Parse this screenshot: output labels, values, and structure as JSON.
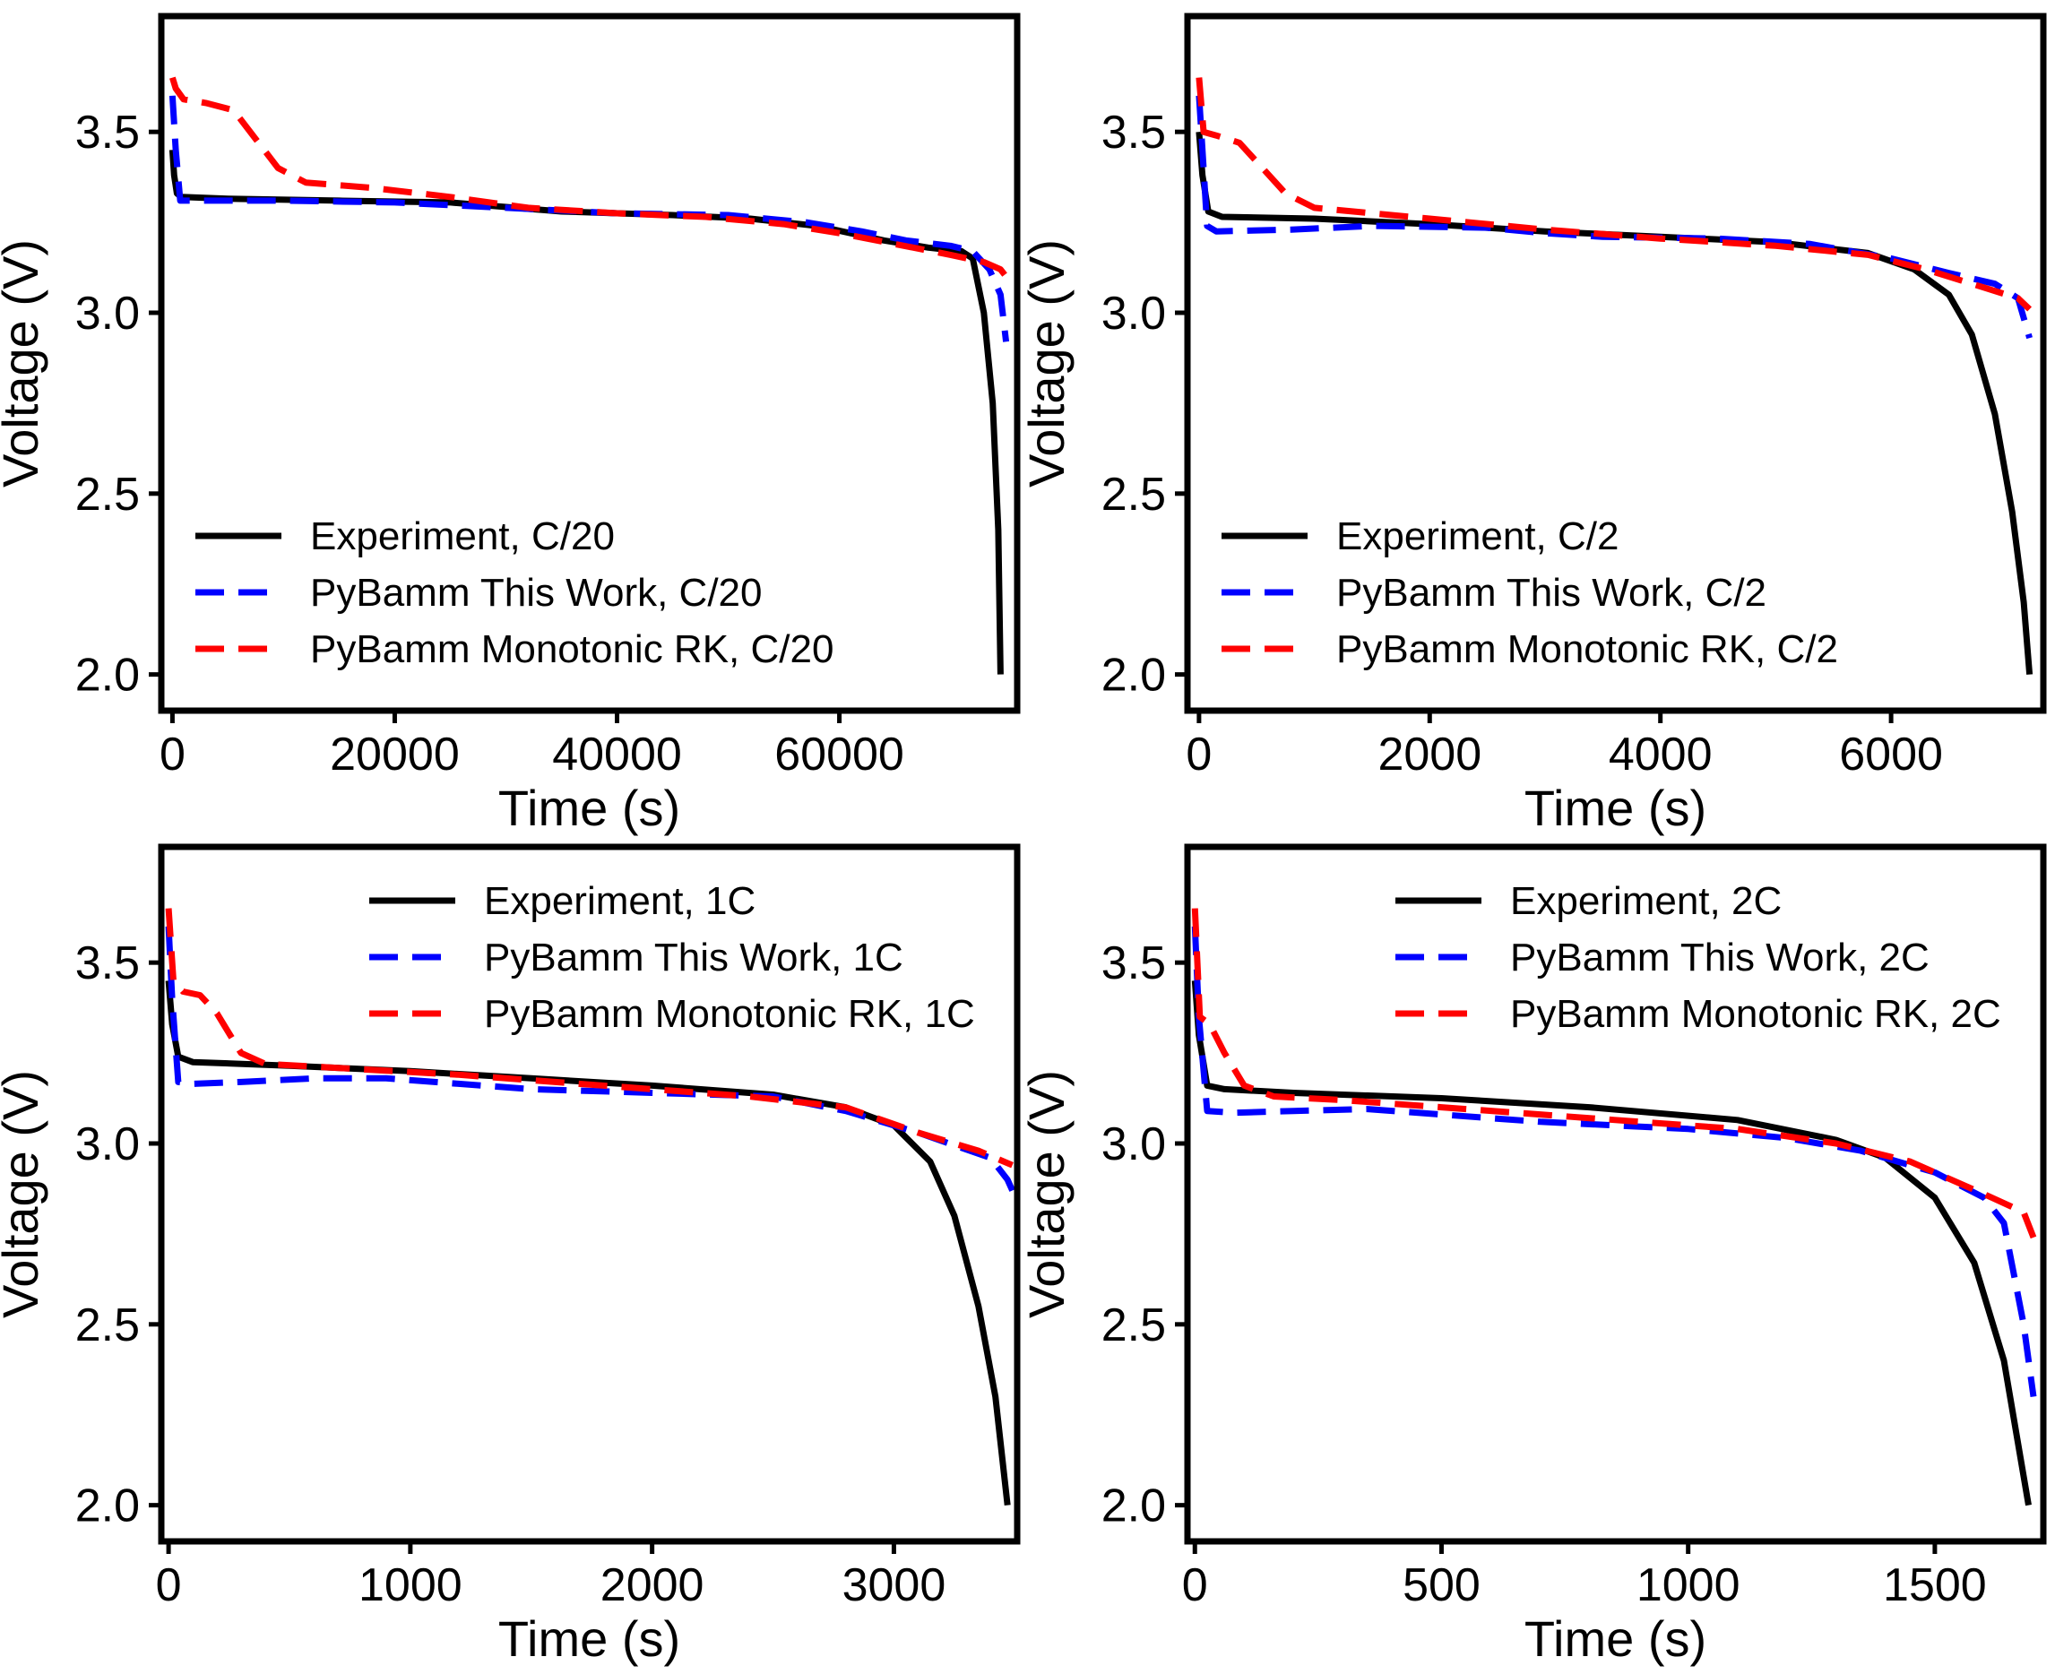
{
  "colors": {
    "experiment": "#000000",
    "this_work": "#0000ff",
    "monotonic": "#ff0000",
    "frame": "#000000"
  },
  "chart_data": [
    {
      "type": "line",
      "xlabel": "Time (s)",
      "ylabel": "Voltage (V)",
      "xlim": [
        -1000,
        76000
      ],
      "ylim": [
        1.9,
        3.82
      ],
      "xticks": [
        0,
        20000,
        40000,
        60000
      ],
      "yticks": [
        2.0,
        2.5,
        3.0,
        3.5
      ],
      "ytick_labels": [
        "2.0",
        "2.5",
        "3.0",
        "3.5"
      ],
      "legend_position": "lower-left",
      "series": [
        {
          "name": "Experiment, C/20",
          "style": "solid",
          "color": "#000000",
          "points": [
            [
              0,
              3.45
            ],
            [
              150,
              3.38
            ],
            [
              400,
              3.33
            ],
            [
              800,
              3.32
            ],
            [
              5000,
              3.315
            ],
            [
              15000,
              3.31
            ],
            [
              25000,
              3.305
            ],
            [
              35000,
              3.28
            ],
            [
              45000,
              3.27
            ],
            [
              52000,
              3.26
            ],
            [
              58000,
              3.24
            ],
            [
              64000,
              3.2
            ],
            [
              68000,
              3.18
            ],
            [
              71000,
              3.17
            ],
            [
              72000,
              3.15
            ],
            [
              73000,
              3.0
            ],
            [
              73800,
              2.75
            ],
            [
              74300,
              2.4
            ],
            [
              74500,
              2.0
            ]
          ]
        },
        {
          "name": "PyBamm This Work, C/20",
          "style": "dashed",
          "color": "#0000ff",
          "points": [
            [
              0,
              3.6
            ],
            [
              300,
              3.45
            ],
            [
              700,
              3.31
            ],
            [
              1500,
              3.31
            ],
            [
              10000,
              3.31
            ],
            [
              20000,
              3.305
            ],
            [
              30000,
              3.29
            ],
            [
              40000,
              3.275
            ],
            [
              50000,
              3.27
            ],
            [
              57000,
              3.25
            ],
            [
              62000,
              3.225
            ],
            [
              66000,
              3.2
            ],
            [
              70000,
              3.185
            ],
            [
              72000,
              3.17
            ],
            [
              73500,
              3.12
            ],
            [
              74500,
              3.05
            ],
            [
              75000,
              2.92
            ]
          ]
        },
        {
          "name": "PyBamm Monotonic RK, C/20",
          "style": "dashed",
          "color": "#ff0000",
          "points": [
            [
              0,
              3.65
            ],
            [
              300,
              3.62
            ],
            [
              1000,
              3.59
            ],
            [
              3000,
              3.58
            ],
            [
              5500,
              3.56
            ],
            [
              7500,
              3.48
            ],
            [
              9500,
              3.4
            ],
            [
              12000,
              3.36
            ],
            [
              18000,
              3.345
            ],
            [
              25000,
              3.32
            ],
            [
              32000,
              3.29
            ],
            [
              40000,
              3.275
            ],
            [
              48000,
              3.265
            ],
            [
              55000,
              3.245
            ],
            [
              60000,
              3.22
            ],
            [
              65000,
              3.19
            ],
            [
              70000,
              3.16
            ],
            [
              73000,
              3.14
            ],
            [
              74500,
              3.12
            ],
            [
              75000,
              3.1
            ]
          ]
        }
      ]
    },
    {
      "type": "line",
      "xlabel": "Time (s)",
      "ylabel": "Voltage (V)",
      "xlim": [
        -100,
        7320
      ],
      "ylim": [
        1.9,
        3.82
      ],
      "xticks": [
        0,
        2000,
        4000,
        6000
      ],
      "yticks": [
        2.0,
        2.5,
        3.0,
        3.5
      ],
      "ytick_labels": [
        "2.0",
        "2.5",
        "3.0",
        "3.5"
      ],
      "legend_position": "lower-left",
      "series": [
        {
          "name": "Experiment, C/2",
          "style": "solid",
          "color": "#000000",
          "points": [
            [
              0,
              3.5
            ],
            [
              30,
              3.38
            ],
            [
              80,
              3.28
            ],
            [
              200,
              3.265
            ],
            [
              1000,
              3.26
            ],
            [
              2000,
              3.245
            ],
            [
              3000,
              3.225
            ],
            [
              4000,
              3.21
            ],
            [
              5000,
              3.195
            ],
            [
              5800,
              3.165
            ],
            [
              6200,
              3.12
            ],
            [
              6500,
              3.05
            ],
            [
              6700,
              2.94
            ],
            [
              6900,
              2.72
            ],
            [
              7050,
              2.45
            ],
            [
              7150,
              2.2
            ],
            [
              7200,
              2.0
            ]
          ]
        },
        {
          "name": "PyBamm This Work, C/2",
          "style": "dashed",
          "color": "#0000ff",
          "points": [
            [
              0,
              3.6
            ],
            [
              30,
              3.45
            ],
            [
              70,
              3.24
            ],
            [
              150,
              3.225
            ],
            [
              800,
              3.23
            ],
            [
              1500,
              3.24
            ],
            [
              2500,
              3.235
            ],
            [
              3000,
              3.22
            ],
            [
              3500,
              3.21
            ],
            [
              4500,
              3.205
            ],
            [
              5300,
              3.19
            ],
            [
              6000,
              3.15
            ],
            [
              6500,
              3.11
            ],
            [
              6900,
              3.08
            ],
            [
              7100,
              3.04
            ],
            [
              7200,
              2.93
            ]
          ]
        },
        {
          "name": "PyBamm Monotonic RK, C/2",
          "style": "dashed",
          "color": "#ff0000",
          "points": [
            [
              0,
              3.65
            ],
            [
              40,
              3.5
            ],
            [
              150,
              3.49
            ],
            [
              350,
              3.47
            ],
            [
              550,
              3.4
            ],
            [
              750,
              3.33
            ],
            [
              1000,
              3.29
            ],
            [
              1500,
              3.275
            ],
            [
              2000,
              3.26
            ],
            [
              3000,
              3.23
            ],
            [
              4000,
              3.205
            ],
            [
              5000,
              3.185
            ],
            [
              5800,
              3.16
            ],
            [
              6300,
              3.12
            ],
            [
              6800,
              3.07
            ],
            [
              7100,
              3.04
            ],
            [
              7200,
              3.01
            ]
          ]
        }
      ]
    },
    {
      "type": "line",
      "xlabel": "Time (s)",
      "ylabel": "Voltage (V)",
      "xlim": [
        -30,
        3510
      ],
      "ylim": [
        1.9,
        3.82
      ],
      "xticks": [
        0,
        1000,
        2000,
        3000
      ],
      "yticks": [
        2.0,
        2.5,
        3.0,
        3.5
      ],
      "ytick_labels": [
        "2.0",
        "2.5",
        "3.0",
        "3.5"
      ],
      "legend_position": "upper-center",
      "series": [
        {
          "name": "Experiment, 1C",
          "style": "solid",
          "color": "#000000",
          "points": [
            [
              0,
              3.45
            ],
            [
              15,
              3.33
            ],
            [
              40,
              3.24
            ],
            [
              100,
              3.225
            ],
            [
              500,
              3.215
            ],
            [
              1000,
              3.2
            ],
            [
              1500,
              3.18
            ],
            [
              2000,
              3.16
            ],
            [
              2500,
              3.135
            ],
            [
              2800,
              3.1
            ],
            [
              3000,
              3.05
            ],
            [
              3150,
              2.95
            ],
            [
              3250,
              2.8
            ],
            [
              3350,
              2.55
            ],
            [
              3420,
              2.3
            ],
            [
              3470,
              2.0
            ]
          ]
        },
        {
          "name": "PyBamm This Work, 1C",
          "style": "dashed",
          "color": "#0000ff",
          "points": [
            [
              0,
              3.6
            ],
            [
              15,
              3.4
            ],
            [
              40,
              3.17
            ],
            [
              100,
              3.165
            ],
            [
              300,
              3.17
            ],
            [
              600,
              3.18
            ],
            [
              900,
              3.18
            ],
            [
              1200,
              3.165
            ],
            [
              1500,
              3.15
            ],
            [
              2000,
              3.14
            ],
            [
              2500,
              3.13
            ],
            [
              2800,
              3.09
            ],
            [
              3100,
              3.03
            ],
            [
              3400,
              2.96
            ],
            [
              3470,
              2.9
            ],
            [
              3490,
              2.87
            ]
          ]
        },
        {
          "name": "PyBamm Monotonic RK, 1C",
          "style": "dashed",
          "color": "#ff0000",
          "points": [
            [
              0,
              3.65
            ],
            [
              20,
              3.45
            ],
            [
              60,
              3.42
            ],
            [
              130,
              3.41
            ],
            [
              200,
              3.36
            ],
            [
              300,
              3.25
            ],
            [
              400,
              3.22
            ],
            [
              800,
              3.205
            ],
            [
              1200,
              3.19
            ],
            [
              1600,
              3.17
            ],
            [
              2000,
              3.15
            ],
            [
              2400,
              3.13
            ],
            [
              2800,
              3.1
            ],
            [
              3100,
              3.03
            ],
            [
              3350,
              2.98
            ],
            [
              3490,
              2.94
            ]
          ]
        }
      ]
    },
    {
      "type": "line",
      "xlabel": "Time (s)",
      "ylabel": "Voltage (V)",
      "xlim": [
        -15,
        1720
      ],
      "ylim": [
        1.9,
        3.82
      ],
      "xticks": [
        0,
        500,
        1000,
        1500
      ],
      "yticks": [
        2.0,
        2.5,
        3.0,
        3.5
      ],
      "ytick_labels": [
        "2.0",
        "2.5",
        "3.0",
        "3.5"
      ],
      "legend_position": "upper-center",
      "series": [
        {
          "name": "Experiment, 2C",
          "style": "solid",
          "color": "#000000",
          "points": [
            [
              0,
              3.45
            ],
            [
              8,
              3.3
            ],
            [
              25,
              3.16
            ],
            [
              60,
              3.15
            ],
            [
              200,
              3.14
            ],
            [
              500,
              3.125
            ],
            [
              800,
              3.1
            ],
            [
              1100,
              3.065
            ],
            [
              1300,
              3.01
            ],
            [
              1400,
              2.96
            ],
            [
              1500,
              2.85
            ],
            [
              1580,
              2.67
            ],
            [
              1640,
              2.4
            ],
            [
              1690,
              2.0
            ]
          ]
        },
        {
          "name": "PyBamm This Work, 2C",
          "style": "dashed",
          "color": "#0000ff",
          "points": [
            [
              0,
              3.6
            ],
            [
              8,
              3.35
            ],
            [
              25,
              3.09
            ],
            [
              80,
              3.085
            ],
            [
              200,
              3.09
            ],
            [
              350,
              3.095
            ],
            [
              500,
              3.08
            ],
            [
              700,
              3.06
            ],
            [
              1000,
              3.04
            ],
            [
              1200,
              3.015
            ],
            [
              1350,
              2.98
            ],
            [
              1500,
              2.92
            ],
            [
              1600,
              2.85
            ],
            [
              1640,
              2.78
            ],
            [
              1680,
              2.5
            ],
            [
              1700,
              2.3
            ]
          ]
        },
        {
          "name": "PyBamm Monotonic RK, 2C",
          "style": "dashed",
          "color": "#ff0000",
          "points": [
            [
              0,
              3.65
            ],
            [
              10,
              3.35
            ],
            [
              30,
              3.33
            ],
            [
              60,
              3.25
            ],
            [
              100,
              3.16
            ],
            [
              160,
              3.13
            ],
            [
              300,
              3.12
            ],
            [
              500,
              3.1
            ],
            [
              800,
              3.07
            ],
            [
              1100,
              3.04
            ],
            [
              1300,
              3.0
            ],
            [
              1450,
              2.95
            ],
            [
              1600,
              2.86
            ],
            [
              1680,
              2.81
            ],
            [
              1700,
              2.74
            ]
          ]
        }
      ]
    }
  ]
}
